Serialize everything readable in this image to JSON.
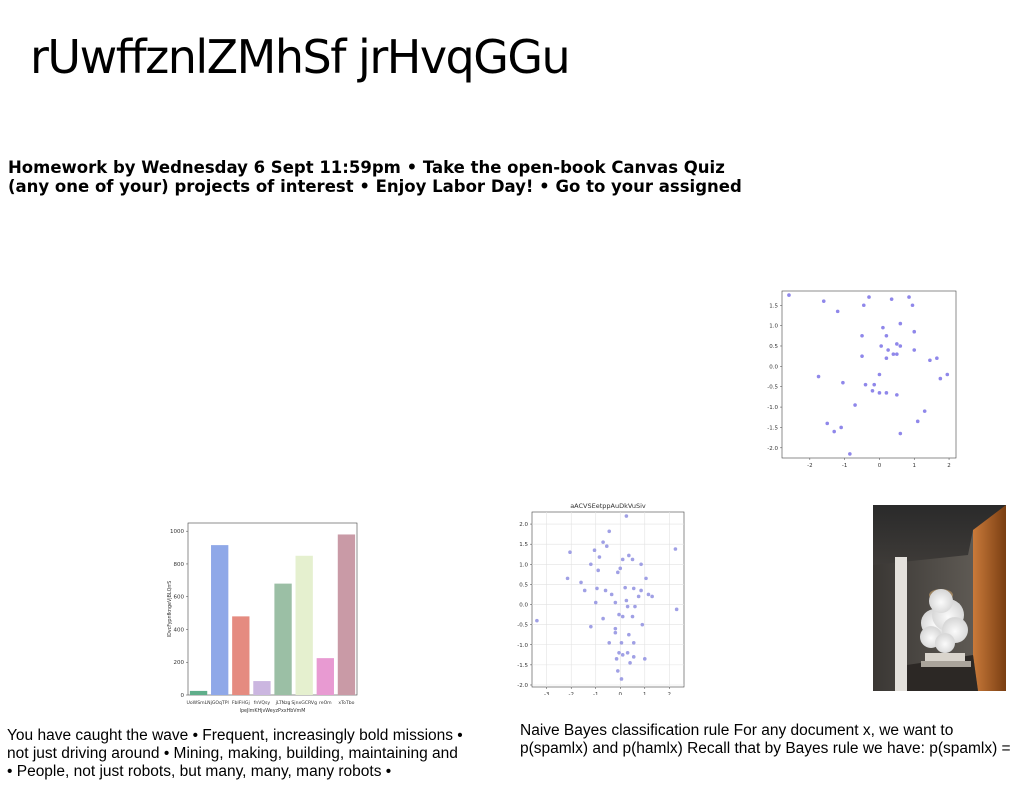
{
  "slide": {
    "title": "rUwffznlZMhSf jrHvqGGu",
    "homework_lines": [
      "Homework by Wednesday 6 Sept 11:59pm • Take the open-book Canvas Quiz",
      "(any one of your) projects of interest • Enjoy Labor Day! • Go to your assigned"
    ],
    "caption_left": [
      "You have caught the wave • Frequent, increasingly bold missions •",
      "not just driving around • Mining, making, building, maintaining and",
      "• People, not just robots, but many, many, many robots •"
    ],
    "caption_right": [
      "Naive Bayes classification rule For any document x, we want to",
      "p(spamlx) and p(hamlx) Recall that by Bayes rule we have: p(spamlx) ="
    ],
    "photo": {
      "subject": "white cloud sculpture in a dark room"
    }
  },
  "chart_data": [
    {
      "type": "scatter",
      "title": "",
      "xlabel": "",
      "ylabel": "",
      "xlim": [
        -2.8,
        2.2
      ],
      "ylim": [
        -2.25,
        1.85
      ],
      "xticks": [
        "-2",
        "-1",
        "0",
        "1",
        "2"
      ],
      "yticks": [
        "1.5",
        "1.0",
        "0.5",
        "0.0",
        "-0.5",
        "-1.0",
        "-1.5",
        "-2.0"
      ],
      "grid": false,
      "color": "#7b72e6",
      "points": [
        [
          -2.6,
          1.75
        ],
        [
          -1.6,
          1.6
        ],
        [
          -1.2,
          1.35
        ],
        [
          -0.3,
          1.7
        ],
        [
          -0.45,
          1.5
        ],
        [
          0.35,
          1.65
        ],
        [
          0.85,
          1.7
        ],
        [
          0.95,
          1.5
        ],
        [
          0.1,
          0.95
        ],
        [
          0.6,
          1.05
        ],
        [
          1.0,
          0.85
        ],
        [
          -0.5,
          0.75
        ],
        [
          0.2,
          0.75
        ],
        [
          0.5,
          0.55
        ],
        [
          0.6,
          0.5
        ],
        [
          0.05,
          0.5
        ],
        [
          0.25,
          0.4
        ],
        [
          0.4,
          0.3
        ],
        [
          0.5,
          0.3
        ],
        [
          1.0,
          0.4
        ],
        [
          0.2,
          0.2
        ],
        [
          -0.5,
          0.25
        ],
        [
          1.45,
          0.15
        ],
        [
          1.65,
          0.2
        ],
        [
          -1.75,
          -0.25
        ],
        [
          0.0,
          -0.2
        ],
        [
          1.75,
          -0.3
        ],
        [
          1.95,
          -0.2
        ],
        [
          -1.05,
          -0.4
        ],
        [
          -0.4,
          -0.45
        ],
        [
          -0.15,
          -0.45
        ],
        [
          -0.2,
          -0.6
        ],
        [
          0.0,
          -0.65
        ],
        [
          0.2,
          -0.65
        ],
        [
          0.5,
          -0.7
        ],
        [
          -0.7,
          -0.95
        ],
        [
          1.3,
          -1.1
        ],
        [
          1.1,
          -1.35
        ],
        [
          -1.5,
          -1.4
        ],
        [
          -1.1,
          -1.5
        ],
        [
          -1.3,
          -1.6
        ],
        [
          0.6,
          -1.65
        ],
        [
          -0.85,
          -2.15
        ]
      ]
    },
    {
      "type": "bar",
      "title": "",
      "xlabel": "lpeJlmKHjvWeyzPxxHbVmM",
      "ylabel": "lDvcFypnfkngeVjBLQrrS",
      "ylim": [
        0,
        1050
      ],
      "yticks": [
        "0",
        "200",
        "400",
        "600",
        "800",
        "1000"
      ],
      "grid": false,
      "categories": [
        "UoWSmLN",
        "jGOqTPl",
        "FbIFHGj",
        "fnVQsy",
        "jLTNzg",
        "SjnxGCRVg",
        "reOm",
        "xToTbo"
      ],
      "values": [
        25,
        915,
        480,
        85,
        680,
        850,
        225,
        980
      ],
      "colors": [
        "#5fae8a",
        "#8fa8e8",
        "#e58b80",
        "#cbb6e0",
        "#9bbfa5",
        "#e5f0cf",
        "#e89ad2",
        "#c99aa6"
      ]
    },
    {
      "type": "scatter",
      "title": "aACVSEetppAuDkVuSiv",
      "xlabel": "",
      "ylabel": "",
      "xlim": [
        -3.6,
        2.6
      ],
      "ylim": [
        -2.05,
        2.3
      ],
      "xticks": [
        "-3",
        "-2",
        "-1",
        "0",
        "1",
        "2"
      ],
      "yticks": [
        "2.0",
        "1.5",
        "1.0",
        "0.5",
        "0.0",
        "-0.5",
        "-1.0",
        "-1.5",
        "-2.0"
      ],
      "grid": true,
      "color": "#8f8fe0",
      "points": [
        [
          0.25,
          2.2
        ],
        [
          -0.45,
          1.82
        ],
        [
          -0.7,
          1.55
        ],
        [
          -0.55,
          1.45
        ],
        [
          -1.05,
          1.35
        ],
        [
          -2.05,
          1.3
        ],
        [
          2.25,
          1.38
        ],
        [
          -0.85,
          1.18
        ],
        [
          0.35,
          1.22
        ],
        [
          0.5,
          1.12
        ],
        [
          0.1,
          1.12
        ],
        [
          -1.2,
          1.0
        ],
        [
          0.85,
          1.0
        ],
        [
          -0.9,
          0.85
        ],
        [
          0.0,
          0.9
        ],
        [
          -0.1,
          0.8
        ],
        [
          1.05,
          0.65
        ],
        [
          -2.15,
          0.65
        ],
        [
          -1.6,
          0.55
        ],
        [
          -0.95,
          0.4
        ],
        [
          -0.6,
          0.35
        ],
        [
          -1.45,
          0.35
        ],
        [
          0.2,
          0.42
        ],
        [
          0.55,
          0.4
        ],
        [
          0.85,
          0.35
        ],
        [
          -0.35,
          0.25
        ],
        [
          0.75,
          0.2
        ],
        [
          1.15,
          0.25
        ],
        [
          1.3,
          0.2
        ],
        [
          -1.0,
          0.05
        ],
        [
          0.25,
          0.1
        ],
        [
          0.3,
          -0.05
        ],
        [
          -0.2,
          0.05
        ],
        [
          0.6,
          -0.05
        ],
        [
          2.3,
          -0.12
        ],
        [
          -0.05,
          -0.25
        ],
        [
          0.1,
          -0.3
        ],
        [
          0.5,
          -0.3
        ],
        [
          -0.7,
          -0.35
        ],
        [
          -3.4,
          -0.4
        ],
        [
          -1.2,
          -0.55
        ],
        [
          0.9,
          -0.5
        ],
        [
          -0.2,
          -0.6
        ],
        [
          -0.2,
          -0.7
        ],
        [
          0.35,
          -0.75
        ],
        [
          0.05,
          -0.95
        ],
        [
          -0.45,
          -0.95
        ],
        [
          0.55,
          -0.95
        ],
        [
          -0.05,
          -1.2
        ],
        [
          0.3,
          -1.2
        ],
        [
          0.1,
          -1.25
        ],
        [
          0.55,
          -1.3
        ],
        [
          1.0,
          -1.35
        ],
        [
          -0.15,
          -1.35
        ],
        [
          0.4,
          -1.45
        ],
        [
          -0.1,
          -1.65
        ],
        [
          0.05,
          -1.85
        ]
      ]
    }
  ]
}
